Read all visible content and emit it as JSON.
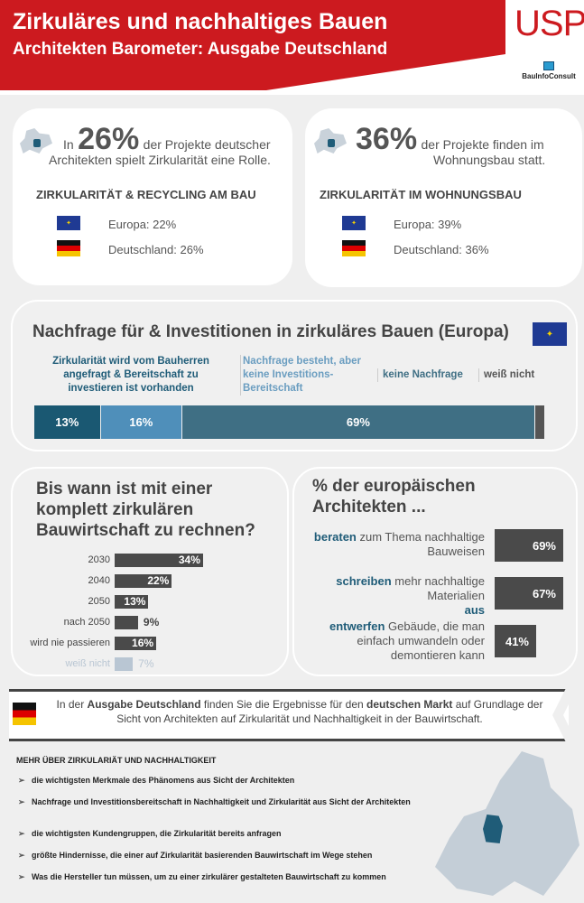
{
  "header": {
    "title": "Zirkuläres und nachhaltiges Bauen",
    "subtitle": "Architekten Barometer: Ausgabe Deutschland",
    "logo_usp": "USP",
    "logo_bic": "BauInfoConsult"
  },
  "colors": {
    "red": "#cc1a1f",
    "dark_teal": "#1a5872",
    "mid_blue": "#4f8fba",
    "teal": "#3f6f84",
    "bar_grey": "#4a4a4a",
    "light_bar": "#b9c6d3"
  },
  "card1": {
    "pre": "In",
    "big": "26%",
    "text1": "der Projekte deutscher",
    "text2": "Architekten spielt Zirkularität eine Rolle.",
    "heading": "ZIRKULARITÄT & RECYCLING AM BAU",
    "europa": "Europa: 22%",
    "deutschland": "Deutschland: 26%"
  },
  "card2": {
    "big": "36%",
    "text1": "der Projekte finden im",
    "text2": "Wohnungsbau statt.",
    "heading": "ZIRKULARITÄT IM WOHNUNGSBAU",
    "europa": "Europa: 39%",
    "deutschland": "Deutschland: 36%"
  },
  "banner": {
    "pre": "In der ",
    "b1": "Ausgabe Deutschland",
    "mid": " finden Sie die Ergebnisse für den ",
    "b2": "deutschen Markt",
    "post": " auf Grundlage der Sicht von Architekten auf Zirkularität und Nachhaltigkeit in der Bauwirtschaft."
  },
  "more": {
    "heading": "MEHR ÜBER ZIRKULARIÄT UND NACHHALTIGKEIT",
    "items": [
      "die wichtigsten  Merkmale des Phänomens aus Sicht der Architekten",
      "Nachfrage und Investitionsbereitschaft in Nachhaltigkeit und Zirkularität aus Sicht der Architekten",
      "die wichtigsten Kundengruppen, die Zirkularität bereits anfragen",
      "größte Hindernisse, die einer auf Zirkularität basierenden Bauwirtschaft im Wege stehen",
      "Was die Hersteller tun müssen, um zu einer zirkulärer gestalteten Bauwirtschaft zu kommen"
    ]
  },
  "chart_data": [
    {
      "type": "bar",
      "orientation": "stacked-horizontal",
      "title": "Nachfrage für & Investitionen in zirkuläres Bauen (Europa)",
      "categories": [
        "Zirkularität wird vom Bauherren angefragt & Bereitschaft zu investieren ist vorhanden",
        "Nachfrage besteht, aber keine Investitions-Bereitschaft",
        "keine Nachfrage",
        "weiß nicht"
      ],
      "values": [
        13,
        16,
        69,
        2
      ],
      "labels": [
        "13%",
        "16%",
        "69%",
        ""
      ]
    },
    {
      "type": "bar",
      "orientation": "horizontal",
      "title": "Bis wann ist mit einer komplett zirkulären Bauwirtschaft zu rechnen?",
      "categories": [
        "2030",
        "2040",
        "2050",
        "nach 2050",
        "wird nie passieren",
        "weiß nicht"
      ],
      "values": [
        34,
        22,
        13,
        9,
        16,
        7
      ],
      "labels": [
        "34%",
        "22%",
        "13%",
        "9%",
        "16%",
        "7%"
      ]
    },
    {
      "type": "bar",
      "orientation": "horizontal",
      "title": "% der europäischen Architekten ...",
      "items": [
        {
          "bold": "beraten",
          "text": " zum Thema nachhaltige Bauweisen",
          "value": 69,
          "label": "69%"
        },
        {
          "bold": "schreiben",
          "text": " mehr nachhaltige Materialien ",
          "bold2": "aus",
          "value": 67,
          "label": "67%"
        },
        {
          "bold": "entwerfen",
          "text": " Gebäude, die man einfach umwandeln oder demontieren kann",
          "value": 41,
          "label": "41%"
        }
      ]
    }
  ]
}
